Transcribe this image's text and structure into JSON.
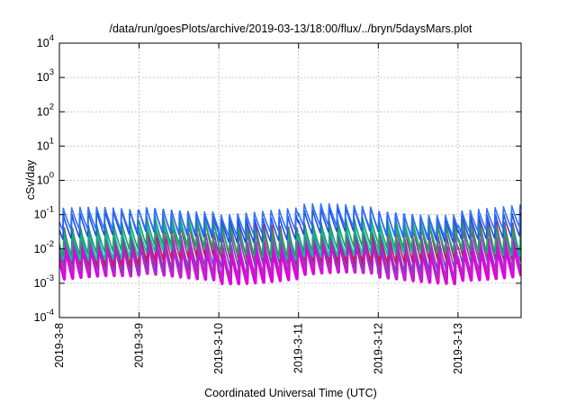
{
  "chart_data": {
    "type": "line",
    "title": "/data/run/goesPlots/archive/2019-03-13/18:00/flux/../bryn/5daysMars.plot",
    "xlabel": "Coordinated Universal Time (UTC)",
    "ylabel": "cSv/day",
    "yscale": "log",
    "ylim": [
      0.0001,
      10000
    ],
    "xlim": [
      "2019-03-08 00:00",
      "2019-03-13 19:00"
    ],
    "grid": true,
    "y_ticks": [
      {
        "value": 0.0001,
        "base": "10",
        "exp": "-4"
      },
      {
        "value": 0.001,
        "base": "10",
        "exp": "-3"
      },
      {
        "value": 0.01,
        "base": "10",
        "exp": "-2"
      },
      {
        "value": 0.1,
        "base": "10",
        "exp": "-1"
      },
      {
        "value": 1,
        "base": "10",
        "exp": "0"
      },
      {
        "value": 10,
        "base": "10",
        "exp": "1"
      },
      {
        "value": 100,
        "base": "10",
        "exp": "2"
      },
      {
        "value": 1000,
        "base": "10",
        "exp": "3"
      },
      {
        "value": 10000,
        "base": "10",
        "exp": "4"
      }
    ],
    "x_ticks": [
      "2019-3-8",
      "2019-3-9",
      "2019-3-10",
      "2019-3-11",
      "2019-3-12",
      "2019-3-13"
    ],
    "pulse_period_hours": 2.5,
    "series": [
      {
        "color": "#e000e0",
        "peak": 0.015,
        "trough": 0.0012
      },
      {
        "color": "#b030c0",
        "peak": 0.02,
        "trough": 0.0015
      },
      {
        "color": "#8040c0",
        "peak": 0.03,
        "trough": 0.0025
      },
      {
        "color": "#c02050",
        "peak": 0.05,
        "trough": 0.004
      },
      {
        "color": "#00c0c0",
        "peak": 0.045,
        "trough": 0.006
      },
      {
        "color": "#20a060",
        "peak": 0.06,
        "trough": 0.008
      },
      {
        "color": "#2050e0",
        "peak": 0.12,
        "trough": 0.02
      },
      {
        "color": "#3070ff",
        "peak": 0.15,
        "trough": 0.03
      }
    ]
  }
}
